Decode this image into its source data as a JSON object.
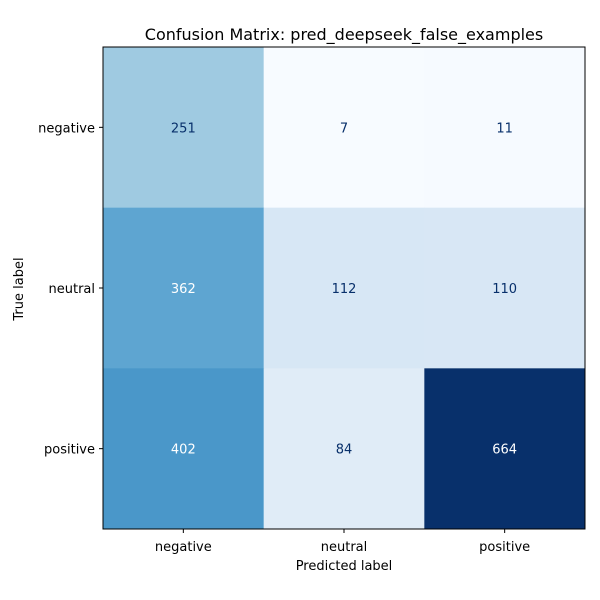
{
  "chart_data": {
    "type": "heatmap",
    "title": "Confusion Matrix: pred_deepseek_false_examples",
    "xlabel": "Predicted label",
    "ylabel": "True label",
    "x_categories": [
      "negative",
      "neutral",
      "positive"
    ],
    "y_categories": [
      "negative",
      "neutral",
      "positive"
    ],
    "values": [
      [
        251,
        7,
        11
      ],
      [
        362,
        112,
        110
      ],
      [
        402,
        84,
        664
      ]
    ],
    "colormap": "Blues",
    "colorbar": false,
    "grid": false
  }
}
